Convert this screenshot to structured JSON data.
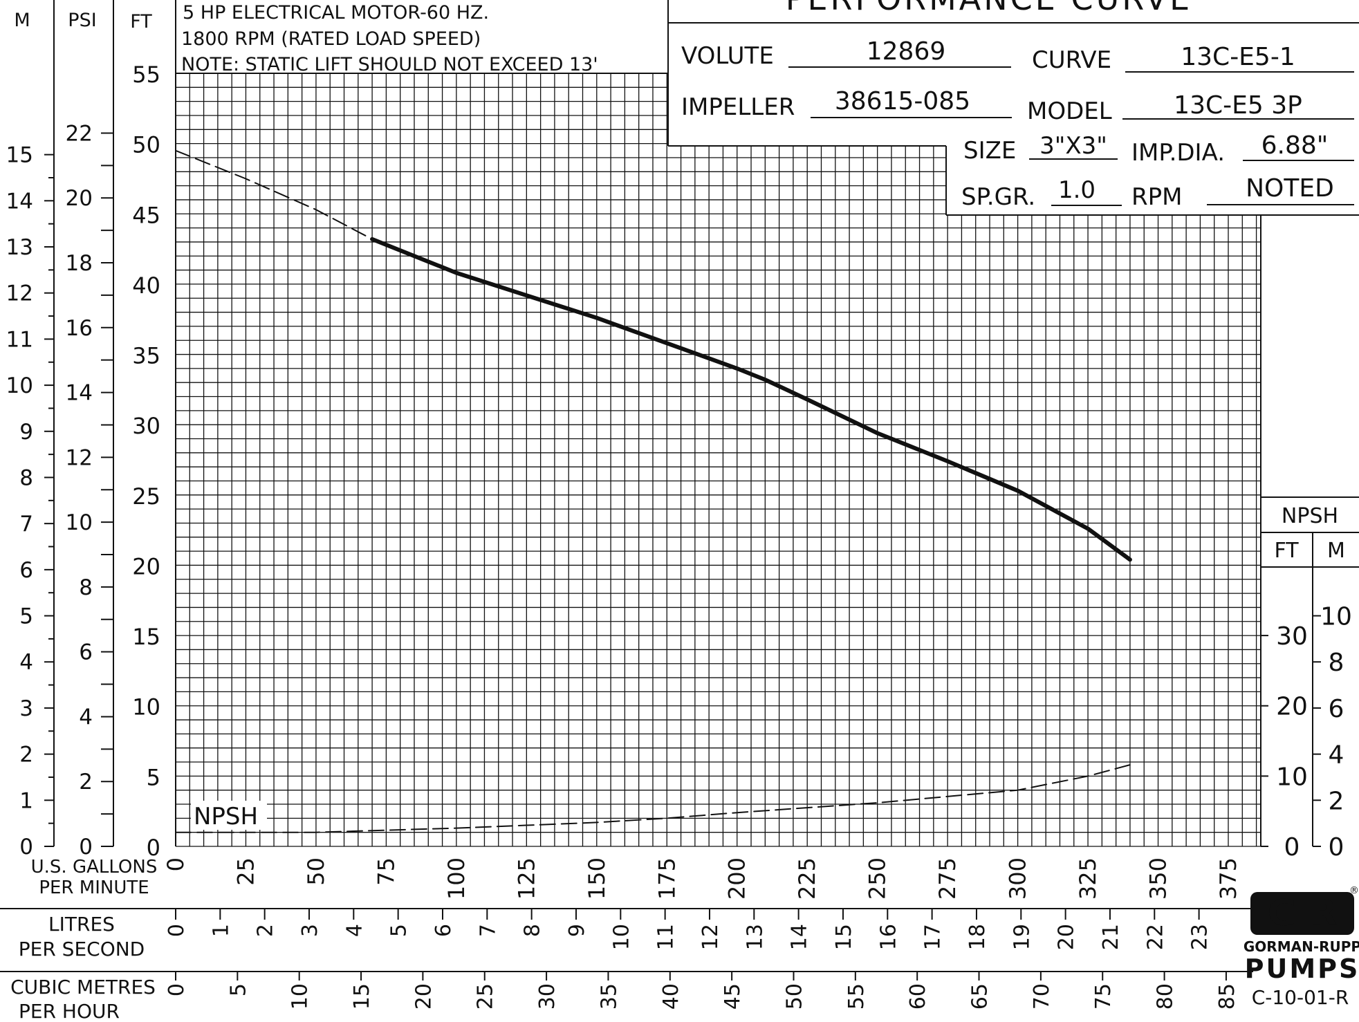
{
  "header": {
    "notes": [
      "5 HP ELECTRICAL MOTOR-60 HZ.",
      "1800 RPM (RATED LOAD SPEED)",
      "NOTE: STATIC LIFT SHOULD NOT EXCEED 13'"
    ],
    "title": "PERFORMANCE CURVE"
  },
  "specs": {
    "volute_label": "VOLUTE",
    "volute": "12869",
    "curve_label": "CURVE",
    "curve": "13C-E5-1",
    "impeller_label": "IMPELLER",
    "impeller": "38615-085",
    "model_label": "MODEL",
    "model": "13C-E5 3P",
    "size_label": "SIZE",
    "size": "3\"X3\"",
    "impdia_label": "IMP.DIA.",
    "impdia": "6.88\"",
    "spgr_label": "SP.GR.",
    "spgr": "1.0",
    "rpm_label": "RPM",
    "rpm": "NOTED"
  },
  "chart_data": {
    "type": "line",
    "grid": true,
    "xlim": [
      0,
      375
    ],
    "ylim": [
      0,
      55
    ],
    "axes": {
      "m_label": "M",
      "m_ticks": [
        0,
        1,
        2,
        3,
        4,
        5,
        6,
        7,
        8,
        9,
        10,
        11,
        12,
        13,
        14,
        15
      ],
      "psi_label": "PSI",
      "psi_ticks": [
        0,
        2,
        4,
        6,
        8,
        10,
        12,
        14,
        16,
        18,
        20,
        22
      ],
      "ft_label": "FT",
      "ft_ticks": [
        0,
        5,
        10,
        15,
        20,
        25,
        30,
        35,
        40,
        45,
        50,
        55
      ],
      "gpm_label_1": "U.S. GALLONS",
      "gpm_label_2": "PER MINUTE",
      "gpm_ticks": [
        0,
        25,
        50,
        75,
        100,
        125,
        150,
        175,
        200,
        225,
        250,
        275,
        300,
        325,
        350,
        375
      ],
      "lps_label_1": "LITRES",
      "lps_label_2": "PER SECOND",
      "lps_ticks": [
        0,
        1,
        2,
        3,
        4,
        5,
        6,
        7,
        8,
        9,
        10,
        11,
        12,
        13,
        14,
        15,
        16,
        17,
        18,
        19,
        20,
        21,
        22,
        23
      ],
      "cmh_label_1": "CUBIC METRES",
      "cmh_label_2": "PER HOUR",
      "cmh_ticks": [
        0,
        5,
        10,
        15,
        20,
        25,
        30,
        35,
        40,
        45,
        50,
        55,
        60,
        65,
        70,
        75,
        80,
        85
      ]
    },
    "npsh_axis": {
      "label": "NPSH",
      "ft_label": "FT",
      "m_label": "M",
      "ft_ticks": [
        0,
        10,
        20,
        30
      ],
      "m_ticks": [
        0,
        2,
        4,
        6,
        8,
        10
      ]
    },
    "npsh_label": "NPSH",
    "series": [
      {
        "style": "dashed",
        "x": [
          0,
          25,
          50,
          70
        ],
        "y": [
          49.5,
          47.5,
          45.3,
          43.2
        ]
      },
      {
        "style": "solid",
        "x": [
          70,
          100,
          125,
          150,
          175,
          200,
          210,
          225,
          250,
          275,
          300,
          325,
          340
        ],
        "y": [
          43.2,
          40.8,
          39.2,
          37.6,
          35.8,
          34.0,
          33.2,
          31.8,
          29.4,
          27.4,
          25.3,
          22.6,
          20.4
        ]
      },
      {
        "style": "dashed",
        "x": [
          0,
          50,
          100,
          150,
          175,
          200,
          250,
          300,
          325,
          340
        ],
        "y": [
          1.0,
          1.0,
          1.3,
          1.7,
          2.0,
          2.4,
          3.1,
          4.0,
          5.0,
          5.8
        ]
      }
    ]
  },
  "footer": {
    "brand_top": "GORMAN-RUPP",
    "brand_bottom": "PUMPS",
    "doc_code": "C-10-01-R"
  }
}
